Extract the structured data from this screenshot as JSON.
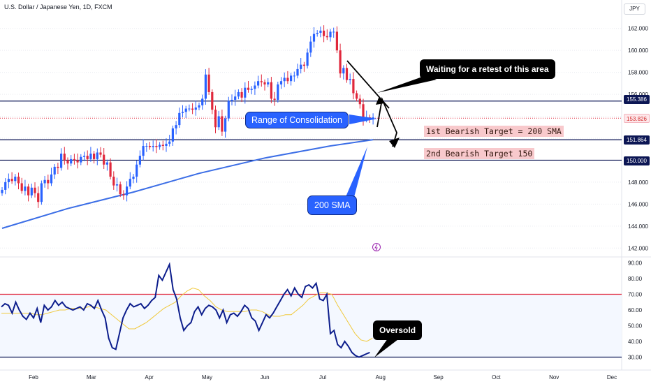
{
  "header": {
    "title": "U.S. Dollar / Japanese Yen, 1D, FXCM",
    "currency_button": "JPY"
  },
  "colors": {
    "up": "#2962ff",
    "down": "#e0283c",
    "sma": "#3c6ee6",
    "rsi": "#0c1d8c",
    "rsi_signal": "#f0c93c",
    "level": "#0c1654",
    "overbought": "#e0283c",
    "grid": "#e9ebf0"
  },
  "price_tags": {
    "p155": "155.386",
    "p153": "153.826",
    "p151": "151.864",
    "p150": "150.000"
  },
  "annotations": {
    "retest": "Waiting for a retest of this area",
    "consolidation": "Range of Consolidation",
    "target1": "1st Bearish Target = 200 SMA",
    "target2": "2nd Bearish Target 150",
    "sma": "200 SMA",
    "oversold": "Oversold"
  },
  "chart_data": [
    {
      "type": "line",
      "name": "price",
      "x_ticks": [
        "Feb",
        "Mar",
        "Apr",
        "May",
        "Jun",
        "Jul",
        "Aug",
        "Sep",
        "Oct",
        "Nov",
        "Dec"
      ],
      "y_ticks": [
        "162.000",
        "160.000",
        "158.000",
        "156.000",
        "154.000",
        "152.000",
        "150.000",
        "148.000",
        "146.000",
        "144.000",
        "142.000"
      ],
      "ylim": [
        141.7,
        162.3
      ],
      "close": [
        147.3,
        148.0,
        148.3,
        148.1,
        148.5,
        147.9,
        147.2,
        147.6,
        146.8,
        147.5,
        147.0,
        146.2,
        147.9,
        148.2,
        147.9,
        148.7,
        149.4,
        149.3,
        150.6,
        150.0,
        149.7,
        150.1,
        150.0,
        149.8,
        150.3,
        150.4,
        150.1,
        150.6,
        150.1,
        150.7,
        150.5,
        149.6,
        149.8,
        148.5,
        147.7,
        147.8,
        146.9,
        146.8,
        147.6,
        148.3,
        148.5,
        149.6,
        150.4,
        151.3,
        151.3,
        151.2,
        151.3,
        151.2,
        151.4,
        151.3,
        151.5,
        151.7,
        152.9,
        153.2,
        154.3,
        154.4,
        154.7,
        154.7,
        154.6,
        154.8,
        155.0,
        155.6,
        157.8,
        156.2,
        154.6,
        153.0,
        154.0,
        152.6,
        153.8,
        155.4,
        155.5,
        155.8,
        156.2,
        155.7,
        156.6,
        156.4,
        156.5,
        156.8,
        157.2,
        157.1,
        156.9,
        157.1,
        155.6,
        155.5,
        156.9,
        157.2,
        157.5,
        157.2,
        157.7,
        157.7,
        158.3,
        158.7,
        158.6,
        159.8,
        160.8,
        161.5,
        161.6,
        161.8,
        161.3,
        161.2,
        161.7,
        161.7,
        160.0,
        157.9,
        158.4,
        157.3,
        157.4,
        156.1,
        155.6,
        155.1,
        153.7,
        153.9,
        153.8,
        153.9
      ]
    },
    {
      "type": "line",
      "name": "200 SMA",
      "ylim": [
        141.7,
        162.3
      ],
      "x": [
        0,
        20,
        40,
        60,
        80,
        100,
        113
      ],
      "values": [
        143.8,
        145.6,
        147.1,
        148.8,
        150.2,
        151.3,
        151.864
      ]
    },
    {
      "type": "line",
      "name": "RSI",
      "y_ticks": [
        "90.00",
        "80.00",
        "70.00",
        "60.00",
        "50.00",
        "40.00",
        "30.00"
      ],
      "ylim": [
        28,
        92
      ],
      "overbought": 70,
      "oversold": 30,
      "values": [
        62,
        64,
        63,
        58,
        65,
        60,
        56,
        54,
        58,
        55,
        61,
        52,
        63,
        60,
        62,
        66,
        63,
        65,
        62,
        61,
        60,
        61,
        62,
        60,
        64,
        63,
        61,
        66,
        60,
        55,
        42,
        36,
        35,
        45,
        55,
        60,
        64,
        62,
        63,
        64,
        61,
        63,
        66,
        68,
        82,
        79,
        84,
        89,
        73,
        67,
        55,
        47,
        50,
        52,
        59,
        62,
        57,
        61,
        63,
        62,
        60,
        55,
        60,
        52,
        57,
        58,
        56,
        59,
        63,
        61,
        55,
        53,
        47,
        52,
        57,
        55,
        58,
        62,
        66,
        70,
        73,
        69,
        74,
        70,
        68,
        75,
        76,
        74,
        77,
        67,
        66,
        70,
        45,
        47,
        38,
        36,
        40,
        37,
        33,
        31,
        30,
        31,
        32,
        33
      ],
      "signal": [
        58,
        58,
        58,
        58,
        58,
        58,
        57,
        57,
        58,
        59,
        60,
        60,
        61,
        61,
        61,
        62,
        62,
        61,
        60,
        57,
        54,
        51,
        48,
        48,
        50,
        52,
        55,
        58,
        61,
        63,
        65,
        69,
        72,
        74,
        73,
        69,
        66,
        62,
        60,
        59,
        59,
        59,
        59,
        60,
        60,
        59,
        57,
        56,
        56,
        57,
        57,
        60,
        63,
        67,
        69,
        71,
        71,
        70,
        63,
        57,
        51,
        45,
        41,
        40,
        42
      ]
    }
  ]
}
